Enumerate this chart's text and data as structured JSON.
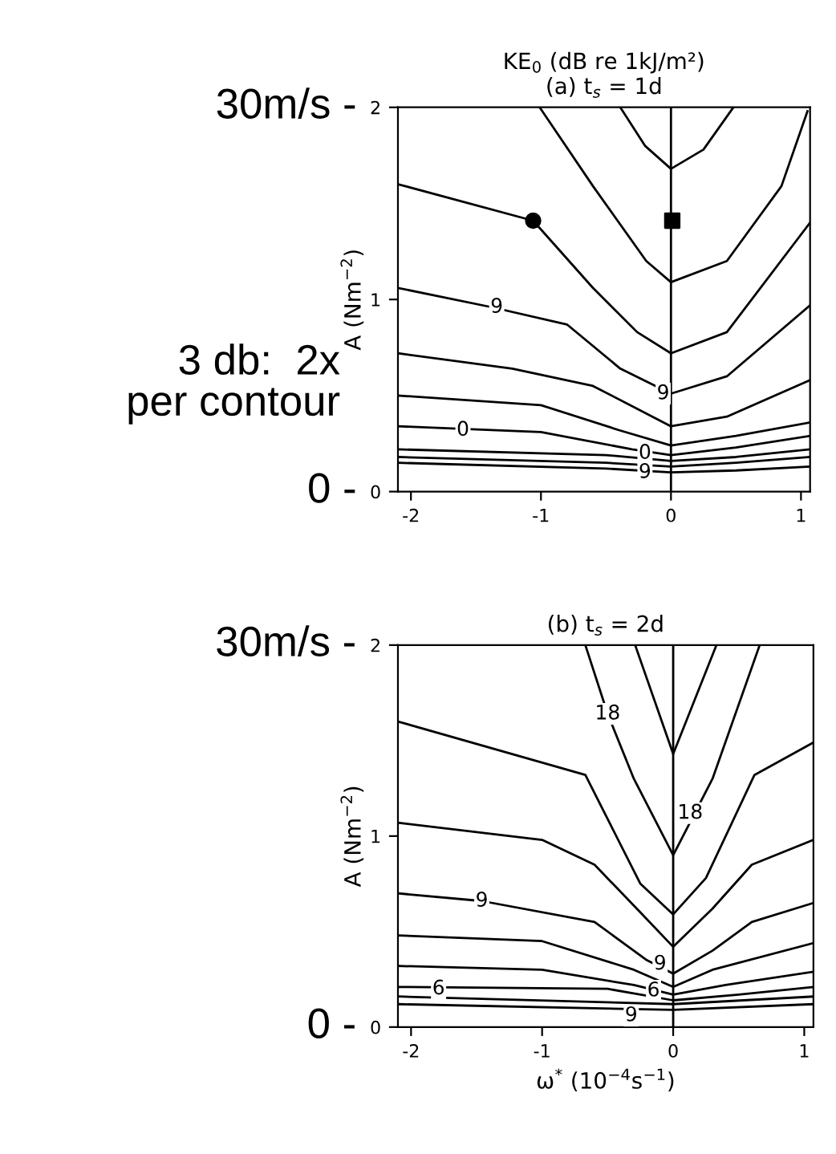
{
  "chart_data": [
    {
      "type": "line",
      "title": "KE$_{0}$ (dB re 1kJ/m²)",
      "subtitle": "(a) t$_{s}$ = 1d",
      "ylabel": "A (Nm$^{−2}$)",
      "xlim": [
        -2.1,
        1.07
      ],
      "ylim": [
        0,
        2
      ],
      "xticks": [
        -2,
        -1,
        0,
        1
      ],
      "yticks": [
        0,
        1,
        2
      ],
      "grid": false,
      "legend": false,
      "ref_lines": [
        {
          "axis": "x",
          "value": 0,
          "color": "#000000"
        }
      ],
      "series": [
        {
          "color": "#000000",
          "x": [
            -0.39,
            -0.2,
            0,
            0.25,
            0.48
          ],
          "values": [
            2.0,
            1.8,
            1.68,
            1.78,
            2.0
          ]
        },
        {
          "color": "#000000",
          "x": [
            -1.01,
            -0.6,
            -0.19,
            0,
            0.43,
            0.85,
            1.05
          ],
          "values": [
            2.0,
            1.59,
            1.2,
            1.09,
            1.2,
            1.59,
            1.98
          ]
        },
        {
          "color": "#000000",
          "x": [
            -2.1,
            -1.06,
            -0.6,
            -0.26,
            0,
            0.43,
            1.07
          ],
          "values": [
            1.6,
            1.41,
            1.06,
            0.83,
            0.72,
            0.83,
            1.4
          ]
        },
        {
          "color": "#000000",
          "x": [
            -2.1,
            -1.38,
            -0.8,
            -0.39,
            0,
            0.43,
            1.07
          ],
          "values": [
            1.06,
            0.96,
            0.87,
            0.64,
            0.51,
            0.6,
            0.97
          ]
        },
        {
          "color": "#000000",
          "x": [
            -2.1,
            -1.22,
            -0.6,
            0,
            0.43,
            1.07
          ],
          "values": [
            0.72,
            0.64,
            0.55,
            0.34,
            0.39,
            0.58
          ]
        },
        {
          "color": "#000000",
          "x": [
            -2.1,
            -1.0,
            -0.4,
            0,
            0.5,
            1.07
          ],
          "values": [
            0.5,
            0.45,
            0.32,
            0.24,
            0.29,
            0.36
          ]
        },
        {
          "color": "#000000",
          "x": [
            -2.1,
            -1.0,
            -0.3,
            0,
            0.5,
            1.07
          ],
          "values": [
            0.34,
            0.31,
            0.22,
            0.19,
            0.23,
            0.29
          ]
        },
        {
          "color": "#000000",
          "x": [
            -2.1,
            -0.5,
            0,
            0.5,
            1.07
          ],
          "values": [
            0.22,
            0.19,
            0.16,
            0.18,
            0.22
          ]
        },
        {
          "color": "#000000",
          "x": [
            -2.1,
            -0.5,
            0,
            0.5,
            1.07
          ],
          "values": [
            0.18,
            0.15,
            0.13,
            0.15,
            0.18
          ]
        },
        {
          "color": "#000000",
          "x": [
            -2.1,
            -0.5,
            0,
            0.5,
            1.07
          ],
          "values": [
            0.15,
            0.12,
            0.1,
            0.11,
            0.13
          ]
        },
        {
          "type": "scatter",
          "marker": "circle",
          "color": "#000000",
          "x": [
            -1.06
          ],
          "values": [
            1.41
          ]
        },
        {
          "type": "scatter",
          "marker": "square",
          "color": "#000000",
          "x": [
            0.01
          ],
          "values": [
            1.41
          ]
        }
      ],
      "annotations": [
        {
          "text": "9",
          "x": -1.34,
          "y": 0.96
        },
        {
          "text": "9",
          "x": -0.06,
          "y": 0.51
        },
        {
          "text": "0",
          "x": -1.6,
          "y": 0.32
        },
        {
          "text": "0",
          "x": -0.2,
          "y": 0.2
        },
        {
          "text": "9",
          "x": -0.2,
          "y": 0.1
        },
        "30m/s -",
        "3 db:  2x\nper contour",
        "0 -"
      ]
    },
    {
      "type": "line",
      "title": "(b) t$_{s}$ = 2d",
      "xlabel": "ω$^{*}$ (10$^{−4}$s$^{−1}$)",
      "ylabel": "A (Nm$^{−2}$)",
      "xlim": [
        -2.1,
        1.07
      ],
      "ylim": [
        0,
        2
      ],
      "xticks": [
        -2,
        -1,
        0,
        1
      ],
      "yticks": [
        0,
        1,
        2
      ],
      "grid": false,
      "legend": false,
      "ref_lines": [
        {
          "axis": "x",
          "value": 0,
          "color": "#000000"
        }
      ],
      "series": [
        {
          "color": "#000000",
          "x": [
            -0.29,
            0,
            0.33
          ],
          "values": [
            2.0,
            1.43,
            2.0
          ]
        },
        {
          "color": "#000000",
          "x": [
            -0.67,
            -0.5,
            -0.3,
            0,
            0.3,
            0.66
          ],
          "values": [
            2.0,
            1.64,
            1.3,
            0.9,
            1.3,
            2.0
          ]
        },
        {
          "color": "#000000",
          "x": [
            -2.1,
            -0.67,
            -0.25,
            0,
            0.25,
            0.62,
            1.07
          ],
          "values": [
            1.6,
            1.32,
            0.75,
            0.59,
            0.78,
            1.32,
            1.49
          ]
        },
        {
          "color": "#000000",
          "x": [
            -2.1,
            -1.0,
            -0.6,
            -0.25,
            0,
            0.3,
            0.6,
            1.07
          ],
          "values": [
            1.07,
            0.98,
            0.85,
            0.6,
            0.42,
            0.62,
            0.85,
            0.98
          ]
        },
        {
          "color": "#000000",
          "x": [
            -2.1,
            -1.46,
            -0.6,
            -0.2,
            0,
            0.3,
            0.6,
            1.07
          ],
          "values": [
            0.7,
            0.66,
            0.55,
            0.35,
            0.28,
            0.4,
            0.55,
            0.65
          ]
        },
        {
          "color": "#000000",
          "x": [
            -2.1,
            -1.0,
            -0.3,
            0,
            0.3,
            1.07
          ],
          "values": [
            0.48,
            0.45,
            0.3,
            0.21,
            0.3,
            0.44
          ]
        },
        {
          "color": "#000000",
          "x": [
            -2.1,
            -1.0,
            -0.3,
            0,
            0.4,
            1.07
          ],
          "values": [
            0.32,
            0.3,
            0.22,
            0.17,
            0.22,
            0.29
          ]
        },
        {
          "color": "#000000",
          "x": [
            -2.1,
            -0.5,
            0,
            0.5,
            1.07
          ],
          "values": [
            0.21,
            0.2,
            0.14,
            0.17,
            0.21
          ]
        },
        {
          "color": "#000000",
          "x": [
            -2.1,
            0,
            1.07
          ],
          "values": [
            0.16,
            0.12,
            0.16
          ]
        },
        {
          "color": "#000000",
          "x": [
            -2.1,
            0,
            1.07
          ],
          "values": [
            0.12,
            0.09,
            0.12
          ]
        }
      ],
      "annotations": [
        {
          "text": "18",
          "x": -0.5,
          "y": 1.64
        },
        {
          "text": "18",
          "x": 0.13,
          "y": 1.12
        },
        {
          "text": "9",
          "x": -1.46,
          "y": 0.66
        },
        {
          "text": "9",
          "x": -0.1,
          "y": 0.33
        },
        {
          "text": "6",
          "x": -1.79,
          "y": 0.2
        },
        {
          "text": "6",
          "x": -0.15,
          "y": 0.19
        },
        {
          "text": "9",
          "x": -0.32,
          "y": 0.06
        },
        "30m/s -",
        "0 -"
      ]
    }
  ]
}
